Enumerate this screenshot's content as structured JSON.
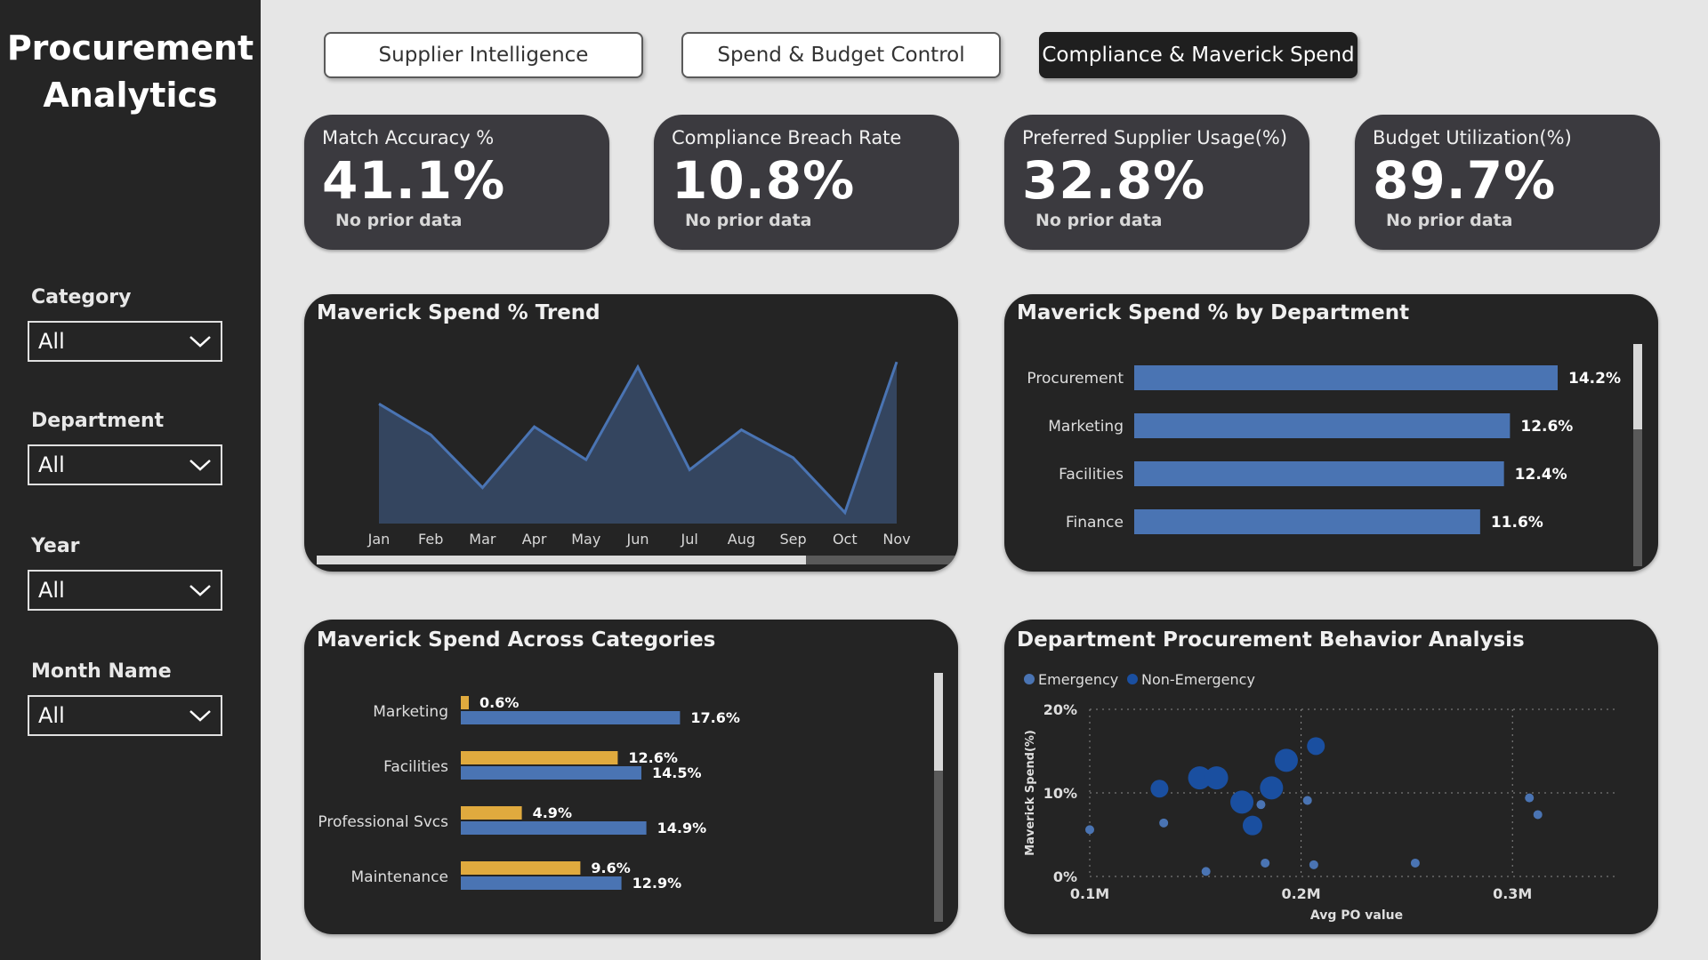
{
  "app": {
    "title_line1": "Procurement",
    "title_line2": "Analytics"
  },
  "filters": [
    {
      "label": "Category",
      "value": "All"
    },
    {
      "label": "Department",
      "value": "All"
    },
    {
      "label": "Year",
      "value": "All"
    },
    {
      "label": "Month Name",
      "value": "All"
    }
  ],
  "tabs": [
    {
      "label": "Supplier Intelligence",
      "active": false
    },
    {
      "label": "Spend & Budget Control",
      "active": false
    },
    {
      "label": "Compliance & Maverick Spend",
      "active": true
    }
  ],
  "kpis": [
    {
      "title": "Match Accuracy %",
      "value": "41.1%",
      "sub": "No prior data"
    },
    {
      "title": "Compliance Breach Rate",
      "value": "10.8%",
      "sub": "No prior data"
    },
    {
      "title": "Preferred Supplier Usage(%)",
      "value": "32.8%",
      "sub": "No prior data"
    },
    {
      "title": "Budget Utilization(%)",
      "value": "89.7%",
      "sub": "No prior data"
    }
  ],
  "colors": {
    "blue": "#4a74b3",
    "gold": "#e0aa3e",
    "navy": "#1a4fa0",
    "card": "#3b3a3f",
    "panel": "#242424"
  },
  "panels": {
    "trend_title": "Maverick Spend % Trend",
    "dept_title": "Maverick Spend % by Department",
    "cat_title": "Maverick Spend Across Categories",
    "behavior_title": "Department Procurement Behavior Analysis"
  },
  "chart_data": [
    {
      "type": "area",
      "title": "Maverick Spend % Trend",
      "categories": [
        "Jan",
        "Feb",
        "Mar",
        "Apr",
        "May",
        "Jun",
        "Jul",
        "Aug",
        "Sep",
        "Oct",
        "Nov"
      ],
      "values": [
        12.0,
        8.9,
        3.6,
        9.7,
        6.4,
        15.7,
        5.4,
        9.4,
        6.6,
        1.1,
        16.2
      ],
      "ylim": [
        0,
        18
      ]
    },
    {
      "type": "bar",
      "title": "Maverick Spend % by Department",
      "categories": [
        "Procurement",
        "Marketing",
        "Facilities",
        "Finance"
      ],
      "values": [
        14.2,
        12.6,
        12.4,
        11.6
      ],
      "labels": [
        "14.2%",
        "12.6%",
        "12.4%",
        "11.6%"
      ]
    },
    {
      "type": "bar",
      "title": "Maverick Spend Across Categories",
      "categories": [
        "Marketing",
        "Facilities",
        "Professional Svcs",
        "Maintenance"
      ],
      "series": [
        {
          "values": [
            0.6,
            12.6,
            4.9,
            9.6
          ],
          "labels": [
            "0.6%",
            "12.6%",
            "4.9%",
            "9.6%"
          ]
        },
        {
          "values": [
            17.6,
            14.5,
            14.9,
            12.9
          ],
          "labels": [
            "17.6%",
            "14.5%",
            "14.9%",
            "12.9%"
          ]
        }
      ]
    },
    {
      "type": "scatter",
      "title": "Department Procurement Behavior Analysis",
      "xlabel": "Avg PO value",
      "ylabel": "Maverick Spend(%)",
      "x_ticks": [
        "0.1M",
        "0.2M",
        "0.3M"
      ],
      "y_ticks": [
        "0%",
        "10%",
        "20%"
      ],
      "xlim": [
        0.1,
        0.35
      ],
      "ylim": [
        0,
        20
      ],
      "legend": [
        "Emergency",
        "Non-Emergency"
      ],
      "series": [
        {
          "name": "Emergency",
          "points": [
            {
              "x": 0.1,
              "y": 5.6
            },
            {
              "x": 0.135,
              "y": 6.4
            },
            {
              "x": 0.155,
              "y": 0.6
            },
            {
              "x": 0.181,
              "y": 8.6
            },
            {
              "x": 0.183,
              "y": 1.6
            },
            {
              "x": 0.203,
              "y": 9.1
            },
            {
              "x": 0.206,
              "y": 1.4
            },
            {
              "x": 0.254,
              "y": 1.6
            },
            {
              "x": 0.308,
              "y": 9.4
            },
            {
              "x": 0.312,
              "y": 7.4
            }
          ]
        },
        {
          "name": "Non-Emergency",
          "points": [
            {
              "x": 0.133,
              "y": 10.5
            },
            {
              "x": 0.152,
              "y": 11.8
            },
            {
              "x": 0.16,
              "y": 11.8
            },
            {
              "x": 0.172,
              "y": 8.9
            },
            {
              "x": 0.177,
              "y": 6.1
            },
            {
              "x": 0.186,
              "y": 10.6
            },
            {
              "x": 0.193,
              "y": 13.9
            },
            {
              "x": 0.207,
              "y": 15.6
            }
          ]
        }
      ]
    }
  ]
}
